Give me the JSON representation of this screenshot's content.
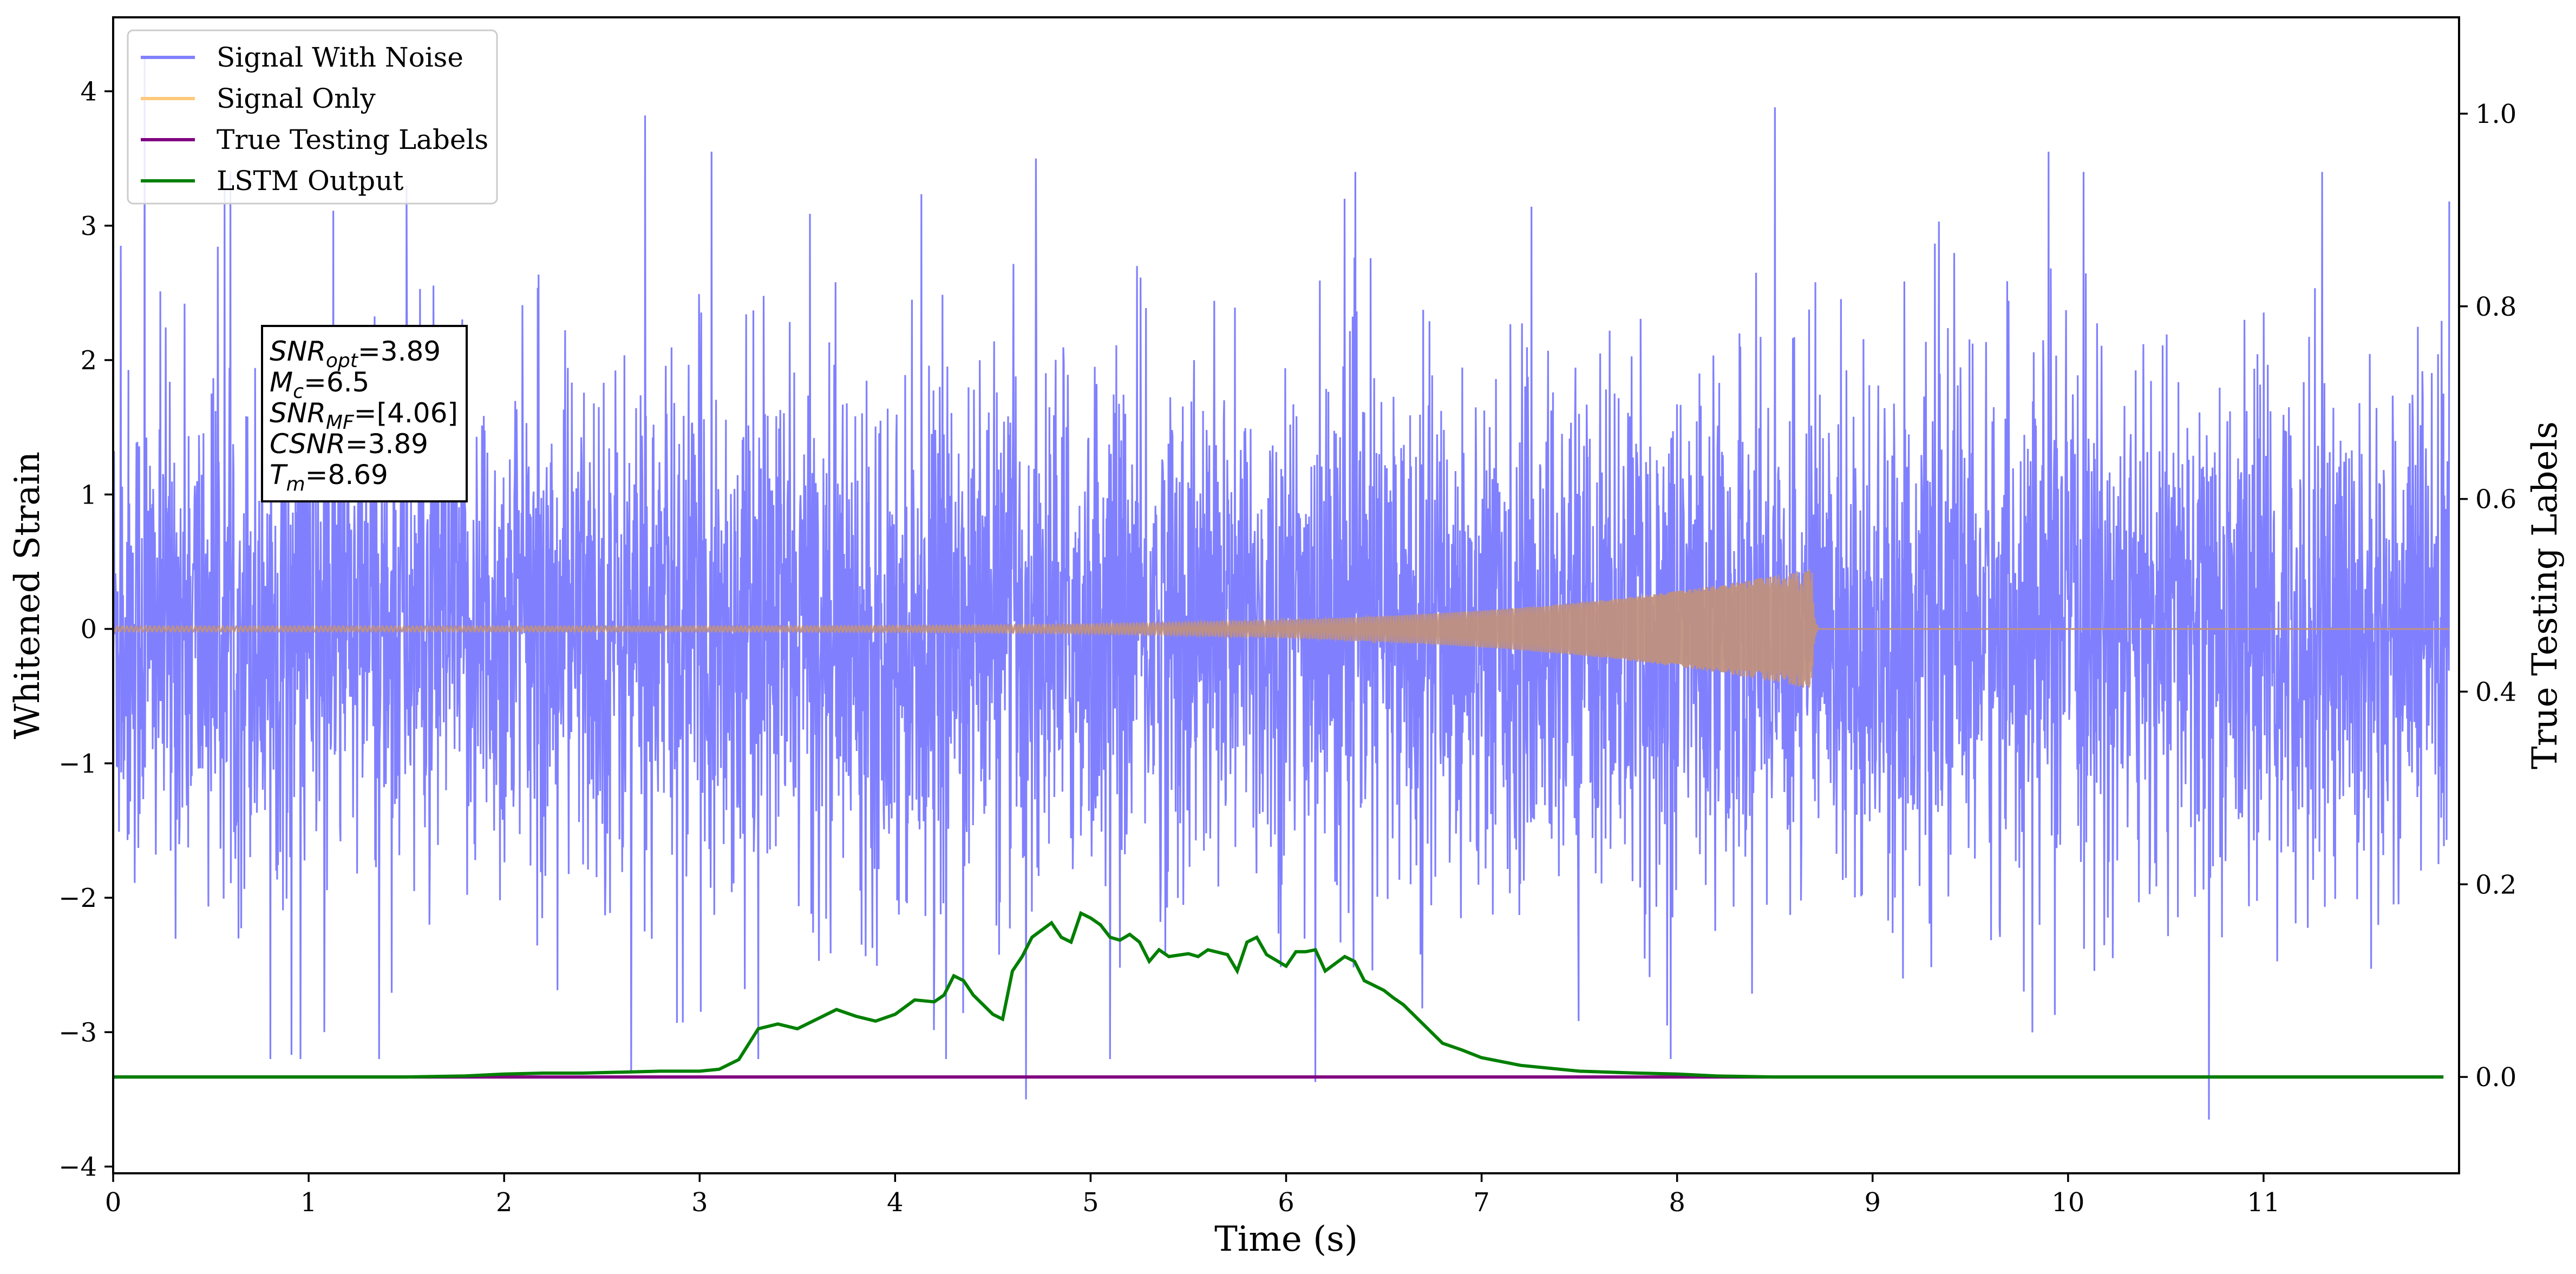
{
  "chart_data": {
    "type": "line",
    "xlabel": "Time (s)",
    "ylabel": "Whitened Strain",
    "y2label": "True Testing Labels",
    "xlim": [
      0,
      12
    ],
    "ylim": [
      -4.05,
      4.55
    ],
    "y2lim": [
      -0.1,
      1.1
    ],
    "x_ticks": [
      "0",
      "1",
      "2",
      "3",
      "4",
      "5",
      "6",
      "7",
      "8",
      "9",
      "10",
      "11"
    ],
    "y_ticks": [
      {
        "value": 4,
        "label": "4"
      },
      {
        "value": 3,
        "label": "3"
      },
      {
        "value": 2,
        "label": "2"
      },
      {
        "value": 1,
        "label": "1"
      },
      {
        "value": 0,
        "label": "0"
      },
      {
        "value": -1,
        "label": "−1"
      },
      {
        "value": -2,
        "label": "−2"
      },
      {
        "value": -3,
        "label": "−3"
      },
      {
        "value": -4,
        "label": "−4"
      }
    ],
    "y2_ticks": [
      {
        "value": 1.0,
        "label": "1.0"
      },
      {
        "value": 0.8,
        "label": "0.8"
      },
      {
        "value": 0.6,
        "label": "0.6"
      },
      {
        "value": 0.4,
        "label": "0.4"
      },
      {
        "value": 0.2,
        "label": "0.2"
      },
      {
        "value": 0.0,
        "label": "0.0"
      }
    ],
    "grid": false,
    "legend_placement": "upper-left",
    "series": [
      {
        "name": "Signal With Noise",
        "axis": "left",
        "color": "#8080ff",
        "kind": "noise",
        "noise_sigma": 0.95,
        "spikes": [
          {
            "x": 0.16,
            "y": 4.25
          },
          {
            "x": 0.04,
            "y": 2.85
          },
          {
            "x": 2.72,
            "y": 3.82
          },
          {
            "x": 3.06,
            "y": 3.55
          },
          {
            "x": 4.72,
            "y": 3.5
          },
          {
            "x": 8.5,
            "y": 3.88
          },
          {
            "x": 9.9,
            "y": 3.55
          },
          {
            "x": 11.3,
            "y": 3.4
          },
          {
            "x": 11.95,
            "y": 3.18
          },
          {
            "x": 1.5,
            "y": 3.3
          },
          {
            "x": 6.3,
            "y": 3.2
          },
          {
            "x": 2.65,
            "y": -3.3
          },
          {
            "x": 4.67,
            "y": -3.5
          },
          {
            "x": 6.15,
            "y": -3.37
          },
          {
            "x": 10.72,
            "y": -3.65
          },
          {
            "x": 1.08,
            "y": -3.0
          },
          {
            "x": 7.95,
            "y": -2.95
          }
        ]
      },
      {
        "name": "Signal Only",
        "axis": "left",
        "color": "#ffc97a",
        "kind": "chirp",
        "t_merge": 8.69,
        "amp_start": 0.02,
        "amp_peak": 0.45
      },
      {
        "name": "True Testing Labels",
        "axis": "right",
        "color": "#800080",
        "x": [
          0,
          11.92
        ],
        "y": [
          0,
          0
        ]
      },
      {
        "name": "LSTM Output",
        "axis": "right",
        "color": "#007f00",
        "x": [
          0,
          1.0,
          1.5,
          1.8,
          2.0,
          2.2,
          2.4,
          2.6,
          2.8,
          3.0,
          3.1,
          3.2,
          3.3,
          3.4,
          3.5,
          3.6,
          3.7,
          3.8,
          3.9,
          4.0,
          4.1,
          4.2,
          4.25,
          4.3,
          4.35,
          4.4,
          4.5,
          4.55,
          4.6,
          4.65,
          4.7,
          4.8,
          4.85,
          4.9,
          4.95,
          5.0,
          5.05,
          5.1,
          5.15,
          5.2,
          5.25,
          5.3,
          5.35,
          5.4,
          5.5,
          5.55,
          5.6,
          5.7,
          5.75,
          5.8,
          5.85,
          5.9,
          6.0,
          6.05,
          6.1,
          6.15,
          6.2,
          6.3,
          6.35,
          6.4,
          6.5,
          6.55,
          6.6,
          6.7,
          6.8,
          6.9,
          7.0,
          7.2,
          7.5,
          7.8,
          8.0,
          8.2,
          8.5,
          9.0,
          10,
          11,
          11.92
        ],
        "y": [
          0,
          0,
          0,
          0.001,
          0.003,
          0.004,
          0.004,
          0.005,
          0.006,
          0.006,
          0.008,
          0.018,
          0.05,
          0.055,
          0.05,
          0.06,
          0.07,
          0.063,
          0.058,
          0.065,
          0.08,
          0.078,
          0.085,
          0.105,
          0.1,
          0.085,
          0.065,
          0.06,
          0.11,
          0.125,
          0.145,
          0.16,
          0.145,
          0.14,
          0.17,
          0.165,
          0.158,
          0.145,
          0.142,
          0.148,
          0.14,
          0.12,
          0.132,
          0.125,
          0.128,
          0.125,
          0.132,
          0.127,
          0.11,
          0.14,
          0.145,
          0.127,
          0.115,
          0.13,
          0.13,
          0.132,
          0.11,
          0.125,
          0.12,
          0.1,
          0.09,
          0.082,
          0.075,
          0.055,
          0.035,
          0.028,
          0.02,
          0.012,
          0.006,
          0.004,
          0.003,
          0.001,
          0,
          0,
          0,
          0,
          0
        ]
      }
    ],
    "annotation": [
      {
        "base": "SNR",
        "sub": "opt",
        "value": "=3.89",
        "italic": true
      },
      {
        "base": "M",
        "sub": "c",
        "value": "=6.5",
        "italic": true
      },
      {
        "base": "SNR",
        "sub": "MF",
        "value": "=[4.06]",
        "italic": true
      },
      {
        "base": "CSNR",
        "sub": "",
        "value": "=3.89",
        "italic": true
      },
      {
        "base": "T",
        "sub": "m",
        "value": "=8.69",
        "italic": true
      }
    ]
  }
}
